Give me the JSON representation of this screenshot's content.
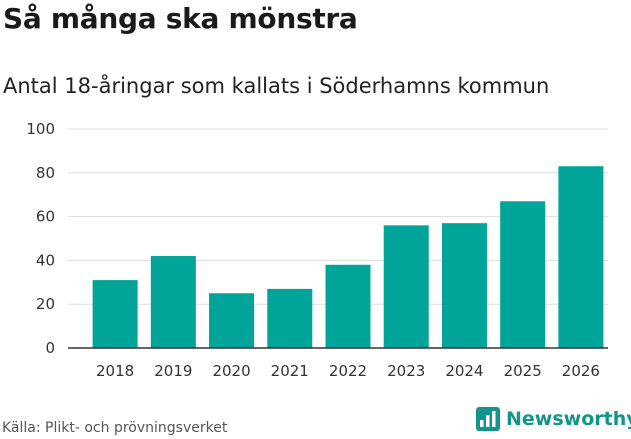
{
  "header": {
    "title": "Så många ska mönstra",
    "subtitle": "Antal 18-åringar som kallats i Söderhamns kommun"
  },
  "footer": {
    "source": "Källa: Plikt- och prövningsverket",
    "brand": "Newsworthy",
    "brand_icon": "bar-chart-logo-icon"
  },
  "colors": {
    "bar": "#00a499",
    "grid": "#dddddd",
    "axis": "#333333",
    "brand": "#12958a"
  },
  "chart_data": {
    "type": "bar",
    "title": "Så många ska mönstra",
    "subtitle": "Antal 18-åringar som kallats i Söderhamns kommun",
    "categories": [
      "2018",
      "2019",
      "2020",
      "2021",
      "2022",
      "2023",
      "2024",
      "2025",
      "2026"
    ],
    "values": [
      31,
      42,
      25,
      27,
      38,
      56,
      57,
      67,
      83
    ],
    "xlabel": "",
    "ylabel": "",
    "ylim": [
      0,
      100
    ],
    "yticks": [
      0,
      20,
      40,
      60,
      80,
      100
    ],
    "grid": true,
    "legend": "none"
  }
}
